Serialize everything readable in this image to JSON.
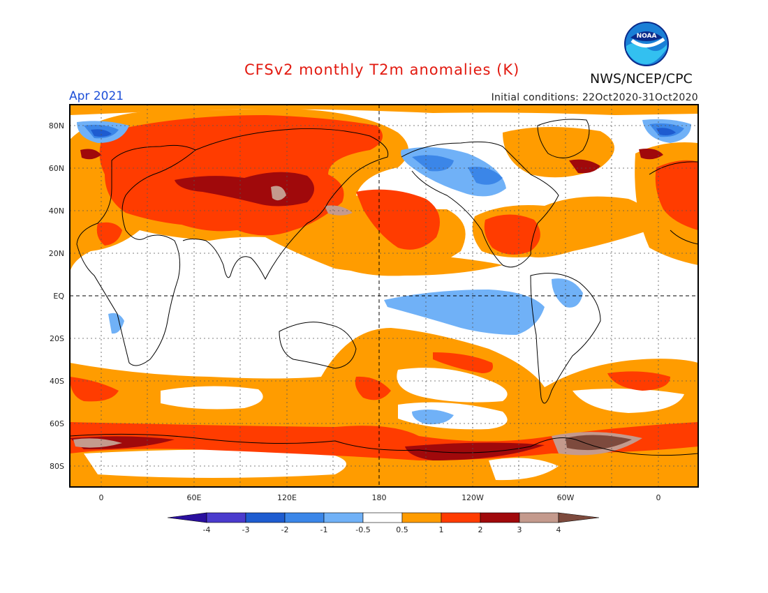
{
  "header": {
    "title": "CFSv2 monthly T2m anomalies (K)",
    "period": "Apr 2021",
    "initial_conditions": "Initial conditions: 22Oct2020-31Oct2020",
    "organization": "NWS/NCEP/CPC",
    "logo_text": "NOAA"
  },
  "map": {
    "lat_labels": [
      "80N",
      "60N",
      "40N",
      "20N",
      "EQ",
      "20S",
      "40S",
      "60S",
      "80S"
    ],
    "lon_labels": [
      "0",
      "60E",
      "120E",
      "180",
      "120W",
      "60W",
      "0"
    ],
    "colors": {
      "very_hot": "#a0090b",
      "hot": "#ff3c00",
      "warm": "#ff9c00",
      "cool": "#70b1f7",
      "cooler": "#3b86e8",
      "cold": "#1e5cd0",
      "extreme_hot": "#c49a8d",
      "max_hot": "#7d4a3d",
      "coast": "#000000"
    }
  },
  "legend": {
    "labels": [
      "-4",
      "-3",
      "-2",
      "-1",
      "-0.5",
      "0.5",
      "1",
      "2",
      "3",
      "4"
    ],
    "colors": [
      "#2a0f9e",
      "#4a3bcd",
      "#1e5cd0",
      "#3b86e8",
      "#70b1f7",
      "#ffffff",
      "#ff9c00",
      "#ff3c00",
      "#a0090b",
      "#c49a8d",
      "#7d4a3d"
    ]
  }
}
